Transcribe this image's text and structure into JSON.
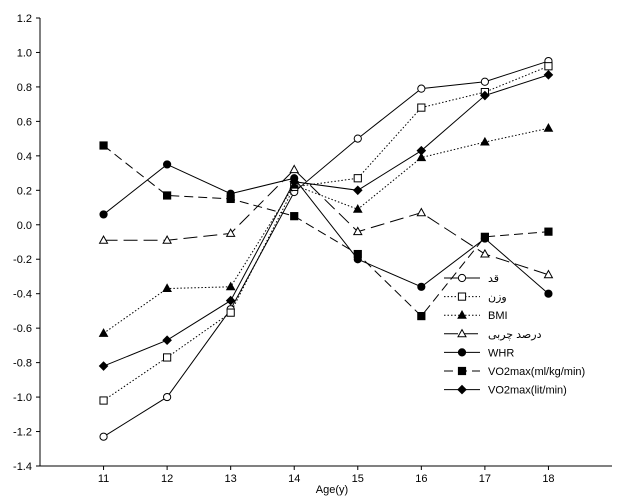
{
  "chart_data": {
    "type": "line",
    "xlabel": "Age(y)",
    "ylabel": "",
    "x": [
      11,
      12,
      13,
      14,
      15,
      16,
      17,
      18
    ],
    "xlim": [
      10,
      19
    ],
    "ylim": [
      -1.4,
      1.2
    ],
    "y_ticks": [
      -1.4,
      -1.2,
      -1.0,
      -0.8,
      -0.6,
      -0.4,
      -0.2,
      0.0,
      0.2,
      0.4,
      0.6,
      0.8,
      1.0,
      1.2
    ],
    "y_tick_labels": [
      "-1.4",
      "-1.2",
      "-1.0",
      "-0.8",
      "-0.6",
      "-0.4",
      "-0.2",
      "0.0",
      "0.2",
      "0.4",
      "0.6",
      "0.8",
      "1.0",
      "1.2"
    ],
    "x_tick_labels": [
      "11",
      "12",
      "13",
      "14",
      "15",
      "16",
      "17",
      "18"
    ],
    "grid": false,
    "legend_position": "bottom-right",
    "series": [
      {
        "name": "قد",
        "values": [
          -1.23,
          -1.0,
          -0.49,
          0.19,
          0.5,
          0.79,
          0.83,
          0.95
        ],
        "marker": "circle-open",
        "dash": "solid"
      },
      {
        "name": "وزن",
        "values": [
          -1.02,
          -0.77,
          -0.51,
          0.22,
          0.27,
          0.68,
          0.77,
          0.92
        ],
        "marker": "square-open",
        "dash": "dotted"
      },
      {
        "name": "BMI",
        "values": [
          -0.63,
          -0.37,
          -0.36,
          0.23,
          0.09,
          0.39,
          0.48,
          0.56
        ],
        "marker": "triangle-filled",
        "dash": "dotted"
      },
      {
        "name": "درصد چربی",
        "values": [
          -0.09,
          -0.09,
          -0.05,
          0.32,
          -0.04,
          0.07,
          -0.17,
          -0.29
        ],
        "marker": "triangle-open",
        "dash": "longdash"
      },
      {
        "name": "WHR",
        "values": [
          0.06,
          0.35,
          0.18,
          0.27,
          -0.2,
          -0.36,
          -0.08,
          -0.4
        ],
        "marker": "circle-filled",
        "dash": "solid"
      },
      {
        "name": "VO2max(ml/kg/min)",
        "values": [
          0.46,
          0.17,
          0.15,
          0.05,
          -0.17,
          -0.53,
          -0.07,
          -0.04
        ],
        "marker": "square-filled",
        "dash": "dashed"
      },
      {
        "name": "VO2max(lit/min)",
        "values": [
          -0.82,
          -0.67,
          -0.44,
          0.25,
          0.2,
          0.43,
          0.75,
          0.87
        ],
        "marker": "diamond-filled",
        "dash": "solid"
      }
    ]
  }
}
